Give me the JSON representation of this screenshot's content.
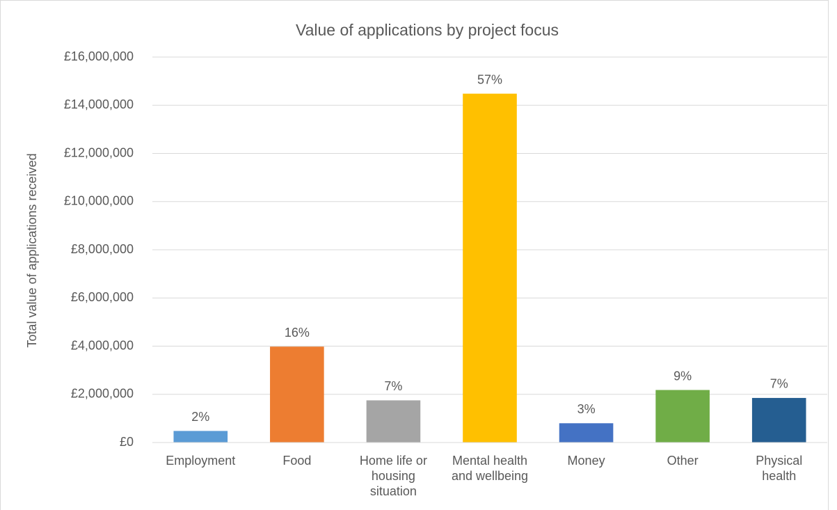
{
  "chart_data": {
    "type": "bar",
    "title": "Value of applications by project focus",
    "y_label": "Total value of applications received",
    "categories": [
      "Employment",
      "Food",
      "Home life or housing situation",
      "Mental health and wellbeing",
      "Money",
      "Other",
      "Physical health"
    ],
    "values": [
      480000,
      3980000,
      1750000,
      14480000,
      800000,
      2180000,
      1850000
    ],
    "data_labels": [
      "2%",
      "16%",
      "7%",
      "57%",
      "3%",
      "9%",
      "7%"
    ],
    "colors": [
      "#5b9bd5",
      "#ed7d31",
      "#a5a5a5",
      "#ffc000",
      "#4472c4",
      "#70ad47",
      "#255e91"
    ],
    "ylim": [
      0,
      16000000
    ],
    "yticks": [
      {
        "value": 0,
        "label": "£0"
      },
      {
        "value": 2000000,
        "label": "£2,000,000"
      },
      {
        "value": 4000000,
        "label": "£4,000,000"
      },
      {
        "value": 6000000,
        "label": "£6,000,000"
      },
      {
        "value": 8000000,
        "label": "£8,000,000"
      },
      {
        "value": 10000000,
        "label": "£10,000,000"
      },
      {
        "value": 12000000,
        "label": "£12,000,000"
      },
      {
        "value": 14000000,
        "label": "£14,000,000"
      },
      {
        "value": 16000000,
        "label": "£16,000,000"
      }
    ],
    "grid": true
  }
}
